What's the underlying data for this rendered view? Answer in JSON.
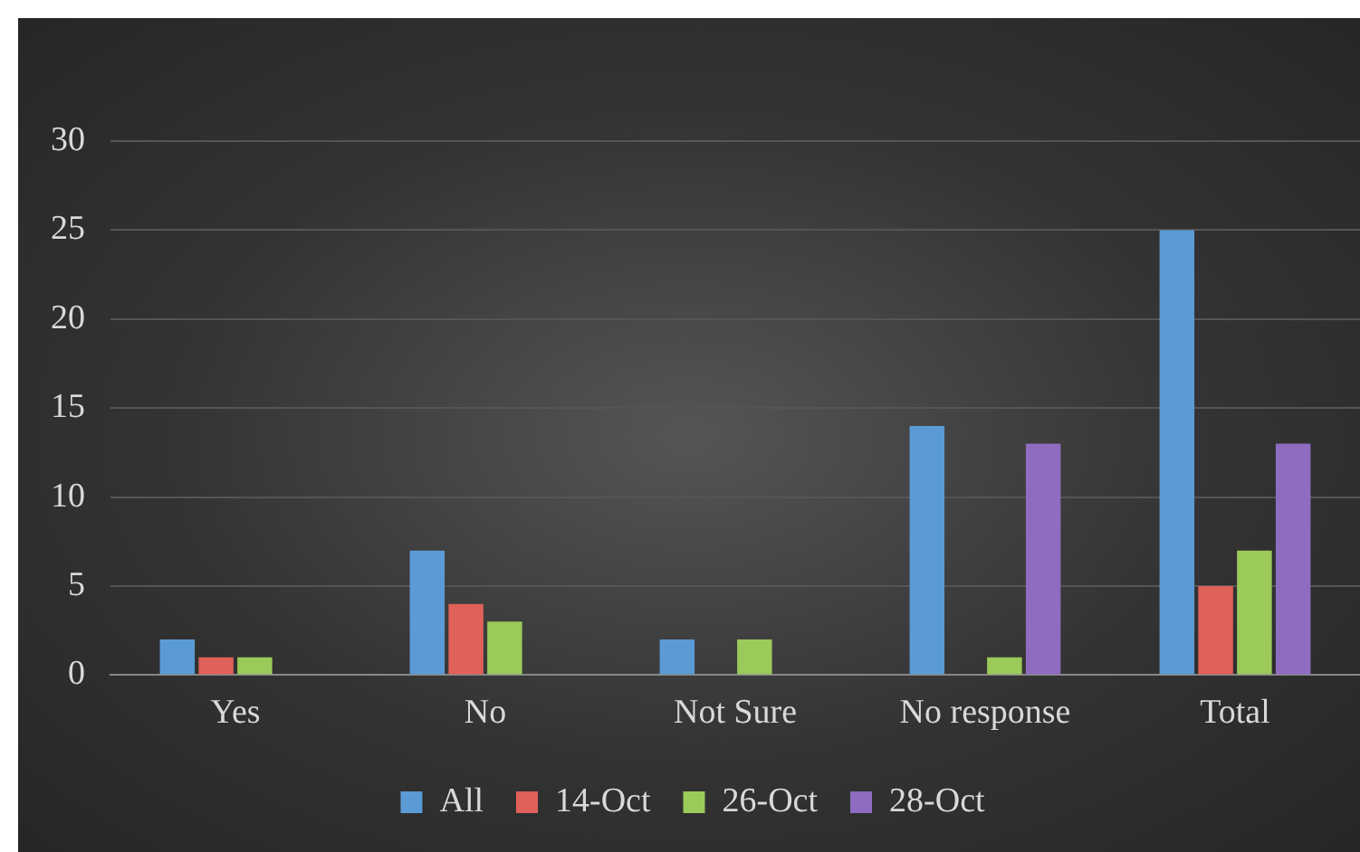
{
  "chart_data": {
    "type": "bar",
    "categories": [
      "Yes",
      "No",
      "Not Sure",
      "No response",
      "Total"
    ],
    "series": [
      {
        "name": "All",
        "color": "#5b9bd5",
        "values": [
          2,
          7,
          2,
          14,
          25
        ]
      },
      {
        "name": "14-Oct",
        "color": "#e0605a",
        "values": [
          1,
          4,
          0,
          0,
          5
        ]
      },
      {
        "name": "26-Oct",
        "color": "#9bc95a",
        "values": [
          1,
          3,
          2,
          1,
          7
        ]
      },
      {
        "name": "28-Oct",
        "color": "#8e6cc0",
        "values": [
          0,
          0,
          0,
          13,
          13
        ]
      }
    ],
    "ylim": [
      0,
      30
    ],
    "yticks": [
      0,
      5,
      10,
      15,
      20,
      25,
      30
    ],
    "grid": "y",
    "legend": "bottom"
  }
}
